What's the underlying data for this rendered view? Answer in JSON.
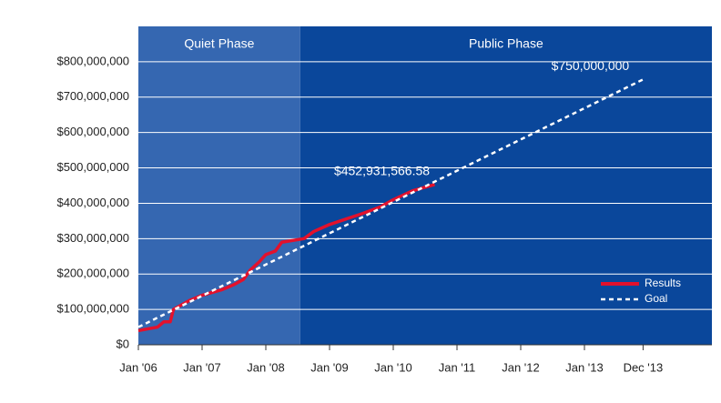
{
  "chart_data": {
    "type": "line",
    "phases": [
      {
        "label": "Quiet Phase",
        "start": 2006,
        "end": 2008.54,
        "color": "#3567b1"
      },
      {
        "label": "Public Phase",
        "start": 2008.54,
        "end": 2015,
        "color": "#0a479b"
      }
    ],
    "series": [
      {
        "name": "Results",
        "color": "#e3112c",
        "dashed": false,
        "x": [
          2006.0,
          2006.3,
          2006.4,
          2006.5,
          2006.55,
          2006.8,
          2007.0,
          2007.3,
          2007.5,
          2007.65,
          2007.75,
          2007.9,
          2008.0,
          2008.15,
          2008.25,
          2008.6,
          2008.75,
          2009.0,
          2009.5,
          2009.8,
          2010.0,
          2010.3,
          2010.65
        ],
        "values": [
          40000000,
          50000000,
          65000000,
          65000000,
          100000000,
          125000000,
          140000000,
          155000000,
          170000000,
          185000000,
          210000000,
          235000000,
          255000000,
          265000000,
          290000000,
          300000000,
          320000000,
          340000000,
          370000000,
          390000000,
          410000000,
          435000000,
          452931566.58
        ]
      },
      {
        "name": "Goal",
        "color": "#ffffff",
        "dashed": true,
        "x": [
          2006.0,
          2013.92
        ],
        "values": [
          50000000,
          750000000
        ]
      }
    ],
    "annotations": [
      {
        "text": "$452,931,566.58",
        "x": 2010.65,
        "y": 452931566.58
      },
      {
        "text": "$750,000,000",
        "x": 2013.92,
        "y": 750000000
      }
    ],
    "xlim": [
      2006,
      2015
    ],
    "xticks": [
      {
        "value": 2006,
        "label": "Jan '06"
      },
      {
        "value": 2007,
        "label": "Jan '07"
      },
      {
        "value": 2008,
        "label": "Jan '08"
      },
      {
        "value": 2009,
        "label": "Jan '09"
      },
      {
        "value": 2010,
        "label": "Jan '10"
      },
      {
        "value": 2011,
        "label": "Jan '11"
      },
      {
        "value": 2012,
        "label": "Jan '12"
      },
      {
        "value": 2013,
        "label": "Jan '13"
      },
      {
        "value": 2013.92,
        "label": "Dec '13"
      }
    ],
    "ylim": [
      0,
      900000000
    ],
    "yticks": [
      {
        "value": 0,
        "label": "$0"
      },
      {
        "value": 100000000,
        "label": "$100,000,000"
      },
      {
        "value": 200000000,
        "label": "$200,000,000"
      },
      {
        "value": 300000000,
        "label": "$300,000,000"
      },
      {
        "value": 400000000,
        "label": "$400,000,000"
      },
      {
        "value": 500000000,
        "label": "$500,000,000"
      },
      {
        "value": 600000000,
        "label": "$600,000,000"
      },
      {
        "value": 700000000,
        "label": "$700,000,000"
      },
      {
        "value": 800000000,
        "label": "$800,000,000"
      }
    ],
    "grid": true,
    "legend": "lower right"
  }
}
